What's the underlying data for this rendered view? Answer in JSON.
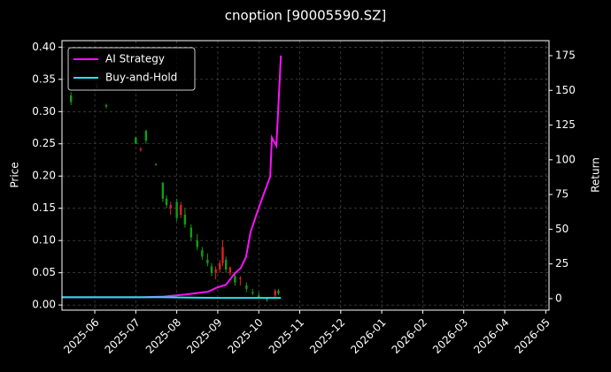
{
  "chart_data": {
    "type": "candlestick",
    "title": "cnoption [90005590.SZ]",
    "ylabel": "Price",
    "y2label": "Return",
    "xlim": [
      -0.8,
      11.08
    ],
    "xticks": [
      {
        "value": 0,
        "label": "2025-06"
      },
      {
        "value": 1,
        "label": "2025-07"
      },
      {
        "value": 2,
        "label": "2025-08"
      },
      {
        "value": 3,
        "label": "2025-09"
      },
      {
        "value": 4,
        "label": "2025-10"
      },
      {
        "value": 5,
        "label": "2025-11"
      },
      {
        "value": 6,
        "label": "2025-12"
      },
      {
        "value": 7,
        "label": "2026-01"
      },
      {
        "value": 8,
        "label": "2026-02"
      },
      {
        "value": 9,
        "label": "2026-03"
      },
      {
        "value": 10,
        "label": "2026-04"
      },
      {
        "value": 11,
        "label": "2026-05"
      }
    ],
    "ylim": [
      -0.008,
      0.41
    ],
    "yticks": [
      {
        "value": 0,
        "label": "0.00"
      },
      {
        "value": 0.05,
        "label": "0.05"
      },
      {
        "value": 0.1,
        "label": "0.10"
      },
      {
        "value": 0.15,
        "label": "0.15"
      },
      {
        "value": 0.2,
        "label": "0.20"
      },
      {
        "value": 0.25,
        "label": "0.25"
      },
      {
        "value": 0.3,
        "label": "0.30"
      },
      {
        "value": 0.35,
        "label": "0.35"
      },
      {
        "value": 0.4,
        "label": "0.40"
      }
    ],
    "y2lim": [
      -8.3,
      185.8
    ],
    "y2ticks": [
      0,
      25,
      50,
      75,
      100,
      125,
      150,
      175
    ],
    "grid": true,
    "legend": "upper-left",
    "up_color": "#e02020",
    "down_color": "#10a010",
    "candles": {
      "x": [
        -0.58,
        0.05,
        0.28,
        1.0,
        1.12,
        1.25,
        1.49,
        1.66,
        1.75,
        1.85,
        2.0,
        2.1,
        2.2,
        2.35,
        2.5,
        2.62,
        2.75,
        2.85,
        2.95,
        3.05,
        3.12,
        3.2,
        3.3,
        3.42,
        3.55,
        3.7,
        3.85,
        4.0,
        4.2,
        4.4,
        4.48
      ],
      "open": [
        0.325,
        0.34,
        0.31,
        0.26,
        0.24,
        0.27,
        0.218,
        0.19,
        0.165,
        0.15,
        0.16,
        0.14,
        0.14,
        0.12,
        0.1,
        0.085,
        0.07,
        0.06,
        0.05,
        0.055,
        0.065,
        0.07,
        0.05,
        0.045,
        0.04,
        0.03,
        0.02,
        0.015,
        0.01,
        0.015,
        0.022
      ],
      "high": [
        0.33,
        0.345,
        0.312,
        0.26,
        0.245,
        0.272,
        0.22,
        0.19,
        0.17,
        0.16,
        0.165,
        0.16,
        0.15,
        0.125,
        0.11,
        0.09,
        0.08,
        0.065,
        0.06,
        0.07,
        0.1,
        0.075,
        0.06,
        0.05,
        0.045,
        0.035,
        0.025,
        0.02,
        0.012,
        0.025,
        0.025
      ],
      "low": [
        0.31,
        0.335,
        0.305,
        0.25,
        0.238,
        0.25,
        0.216,
        0.16,
        0.15,
        0.14,
        0.13,
        0.135,
        0.12,
        0.1,
        0.085,
        0.07,
        0.06,
        0.045,
        0.04,
        0.05,
        0.06,
        0.05,
        0.045,
        0.03,
        0.03,
        0.02,
        0.015,
        0.01,
        0.005,
        0.012,
        0.015
      ],
      "close": [
        0.315,
        0.338,
        0.308,
        0.25,
        0.242,
        0.255,
        0.217,
        0.165,
        0.155,
        0.155,
        0.135,
        0.155,
        0.125,
        0.105,
        0.09,
        0.075,
        0.065,
        0.05,
        0.055,
        0.065,
        0.09,
        0.055,
        0.058,
        0.035,
        0.042,
        0.025,
        0.018,
        0.012,
        0.008,
        0.022,
        0.018
      ]
    },
    "x": [
      -0.8,
      0.28,
      1.14,
      1.68,
      2.22,
      2.76,
      2.98,
      3.2,
      3.41,
      3.56,
      3.69,
      3.8,
      3.96,
      4.08,
      4.28,
      4.32,
      4.43,
      4.54
    ],
    "series": [
      {
        "name": "AI Strategy",
        "color": "#ff10ff",
        "axis": "y2",
        "values": [
          1,
          1,
          1,
          1.5,
          3,
          5,
          8,
          10,
          18,
          22,
          30,
          48,
          62,
          72,
          88,
          116,
          110,
          175
        ]
      },
      {
        "name": "Buy-and-Hold",
        "color": "#20e8f0",
        "axis": "y2",
        "values": [
          1,
          1,
          1,
          1,
          0.8,
          0.6,
          0.5,
          0.5,
          0.5,
          0.5,
          0.5,
          0.5,
          0.5,
          0.5,
          0.5,
          0.5,
          0.5,
          0.5
        ]
      }
    ]
  }
}
